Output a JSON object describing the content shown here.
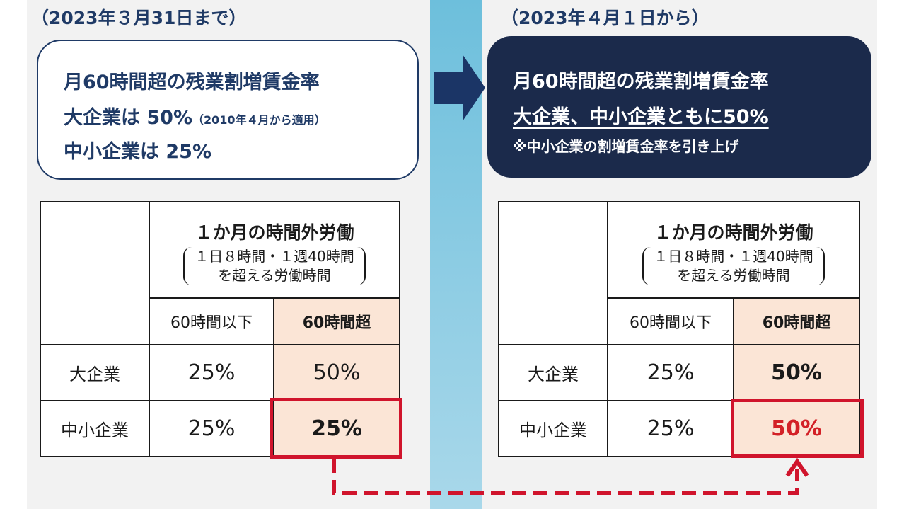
{
  "before": {
    "period": "（2023年３月31日まで）",
    "box": {
      "line1": "月60時間超の残業割増賃金率",
      "line2_main": "大企業は 50%",
      "line2_note": "（2010年４月から適用）",
      "line3": "中小企業は 25%"
    },
    "table": {
      "head_title": "１か月の時間外労働",
      "head_sub1": "１日８時間・１週40時間",
      "head_sub2": "を超える労働時間",
      "col1": "60時間以下",
      "col2": "60時間超",
      "rows": [
        {
          "label": "大企業",
          "v1": "25%",
          "v2": "50%"
        },
        {
          "label": "中小企業",
          "v1": "25%",
          "v2": "25%"
        }
      ]
    }
  },
  "after": {
    "period": "（2023年４月１日から）",
    "box": {
      "line1": "月60時間超の残業割増賃金率",
      "line2": "大企業、中小企業ともに50%",
      "line3": "※中小企業の割増賃金率を引き上げ"
    },
    "table": {
      "head_title": "１か月の時間外労働",
      "head_sub1": "１日８時間・１週40時間",
      "head_sub2": "を超える労働時間",
      "col1": "60時間以下",
      "col2": "60時間超",
      "rows": [
        {
          "label": "大企業",
          "v1": "25%",
          "v2": "50%"
        },
        {
          "label": "中小企業",
          "v1": "25%",
          "v2": "50%"
        }
      ]
    }
  },
  "colors": {
    "navy": "#1b2a4b",
    "title_blue": "#1f3a66",
    "highlight": "#fbe5d6",
    "red": "#d0142c",
    "divider": "#6dbfdc"
  }
}
